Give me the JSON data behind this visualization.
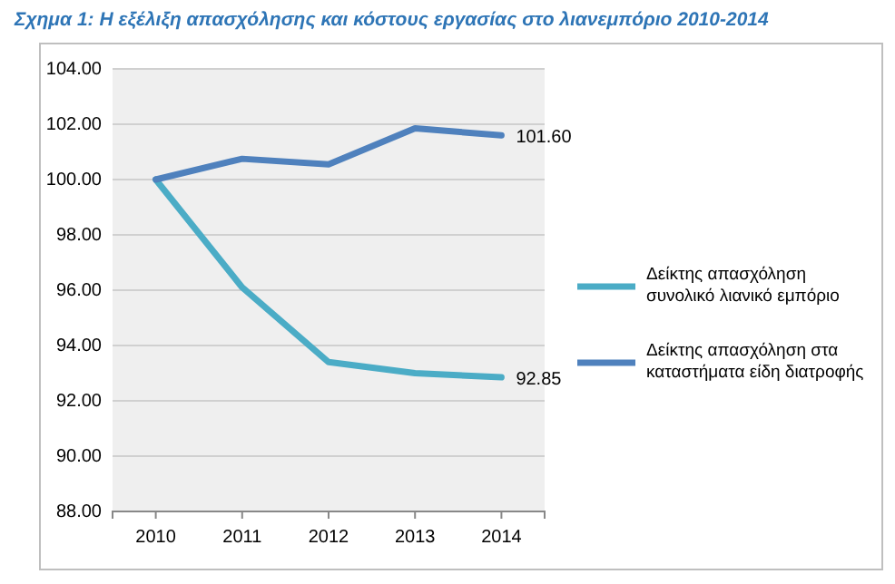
{
  "chart_data": {
    "type": "line",
    "title": "Σχημα 1: Η εξέλιξη απασχόλησης και κόστους εργασίας στο λιανεμπόριο 2010-2014",
    "categories": [
      "2010",
      "2011",
      "2012",
      "2013",
      "2014"
    ],
    "series": [
      {
        "name": "Δείκτης απασχόληση συνολικό λιανικό εμπόριο",
        "color": "#4bacc6",
        "values": [
          100,
          96.1,
          93.4,
          93.0,
          92.85
        ],
        "value_labels": [
          null,
          null,
          null,
          null,
          "92.85"
        ]
      },
      {
        "name": "Δείκτης απασχόληση στα καταστήματα είδη διατροφής",
        "color": "#4f81bd",
        "values": [
          100,
          100.75,
          100.55,
          101.85,
          101.6
        ],
        "value_labels": [
          null,
          null,
          null,
          null,
          "101.60"
        ]
      }
    ],
    "ylim": [
      88,
      104
    ],
    "yticks": [
      {
        "value": 88,
        "label": "88.00"
      },
      {
        "value": 90,
        "label": "90.00"
      },
      {
        "value": 92,
        "label": "92.00"
      },
      {
        "value": 94,
        "label": "94.00"
      },
      {
        "value": 96,
        "label": "96.00"
      },
      {
        "value": 98,
        "label": "98.00"
      },
      {
        "value": 100,
        "label": "100.00"
      },
      {
        "value": 102,
        "label": "102.00"
      },
      {
        "value": 104,
        "label": "104.00"
      }
    ],
    "grid": "y",
    "legend": "right",
    "marker": "none",
    "line_style": "solid"
  }
}
